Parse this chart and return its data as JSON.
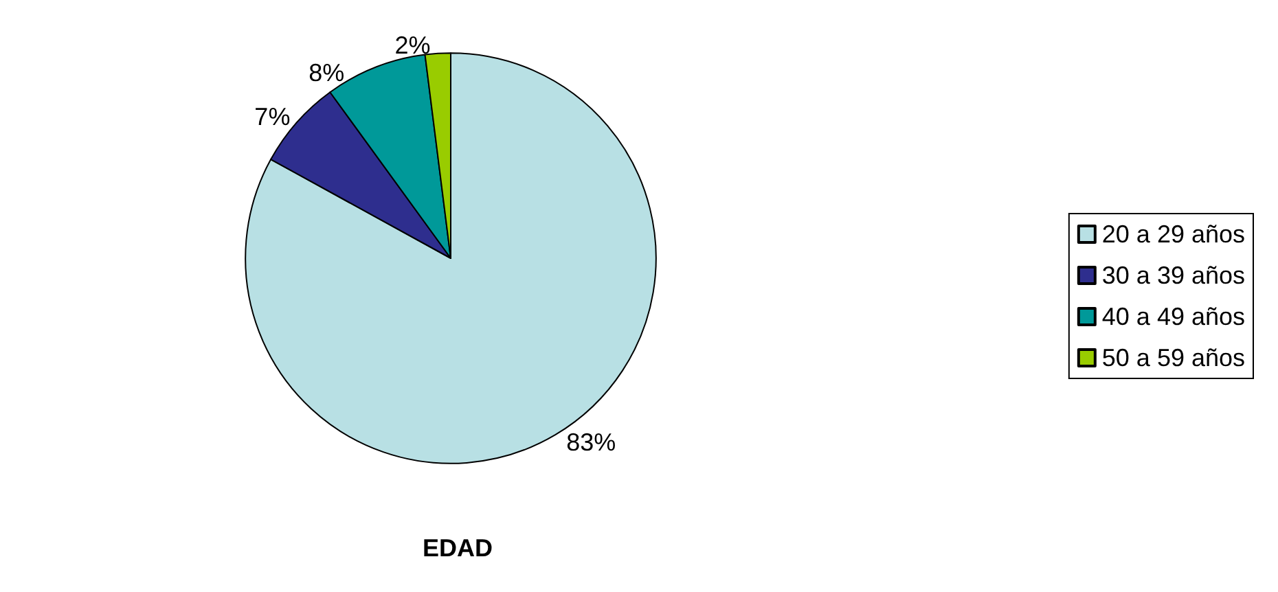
{
  "chart_data": {
    "type": "pie",
    "title": "EDAD",
    "categories": [
      "20 a 29 años",
      "30 a 39 años",
      "40 a 49 años",
      "50 a 59 años"
    ],
    "values": [
      83,
      7,
      8,
      2
    ],
    "value_labels": [
      "83%",
      "7%",
      "8%",
      "2%"
    ],
    "colors": [
      "#b8e0e4",
      "#2e2e8e",
      "#009999",
      "#99cc00"
    ],
    "legend": "right"
  }
}
